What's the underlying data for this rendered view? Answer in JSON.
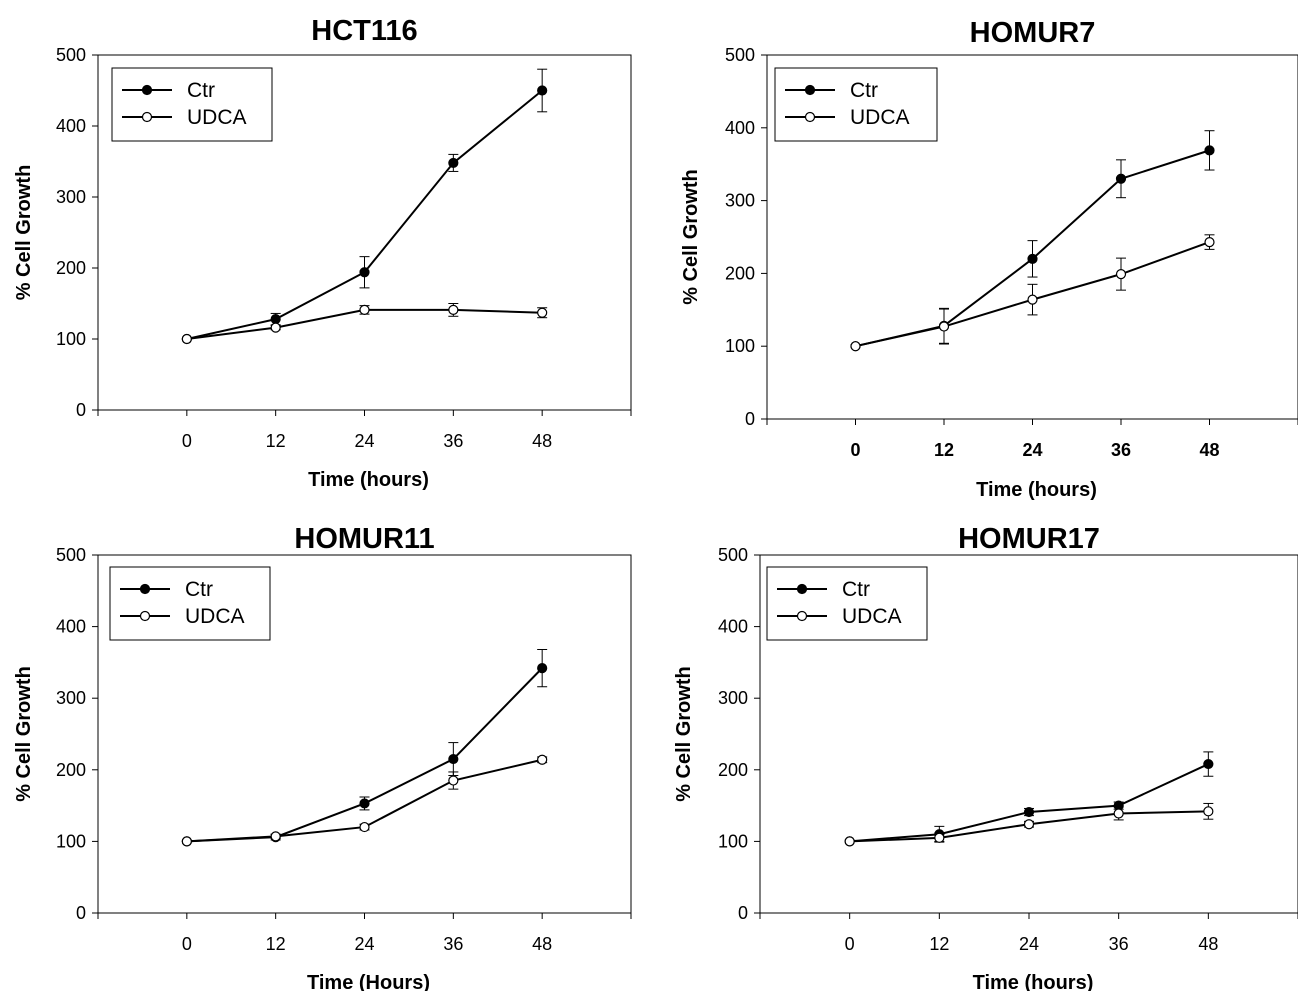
{
  "chart_data": [
    {
      "type": "line",
      "title": "HCT116",
      "xlabel": "Time (hours)",
      "ylabel": "% Cell Growth",
      "x": [
        0,
        12,
        24,
        36,
        48
      ],
      "xlim": [
        -12,
        60
      ],
      "ylim": [
        0,
        500
      ],
      "xticks": [
        "0",
        "12",
        "24",
        "36",
        "48"
      ],
      "yticks": [
        "0",
        "100",
        "200",
        "300",
        "400",
        "500"
      ],
      "bold_xticks": false,
      "legend": "top-left",
      "series": [
        {
          "name": "Ctr",
          "marker": "filled-circle",
          "values": [
            100,
            128,
            194,
            348,
            450
          ],
          "errors": [
            0,
            8,
            22,
            12,
            30
          ]
        },
        {
          "name": "UDCA",
          "marker": "open-circle",
          "values": [
            100,
            116,
            141,
            141,
            137
          ],
          "errors": [
            0,
            3,
            6,
            9,
            7
          ]
        }
      ]
    },
    {
      "type": "line",
      "title": "HOMUR7",
      "xlabel": "Time (hours)",
      "ylabel": "% Cell Growth",
      "x": [
        0,
        12,
        24,
        36,
        48
      ],
      "xlim": [
        -12,
        60
      ],
      "ylim": [
        0,
        500
      ],
      "xticks": [
        "0",
        "12",
        "24",
        "36",
        "48"
      ],
      "yticks": [
        "0",
        "100",
        "200",
        "300",
        "400",
        "500"
      ],
      "bold_xticks": true,
      "legend": "top-left",
      "series": [
        {
          "name": "Ctr",
          "marker": "filled-circle",
          "values": [
            100,
            128,
            220,
            330,
            369
          ],
          "errors": [
            0,
            24,
            25,
            26,
            27
          ]
        },
        {
          "name": "UDCA",
          "marker": "open-circle",
          "values": [
            100,
            127,
            164,
            199,
            243
          ],
          "errors": [
            0,
            24,
            21,
            22,
            10
          ]
        }
      ]
    },
    {
      "type": "line",
      "title": "HOMUR11",
      "xlabel": "Time (Hours)",
      "ylabel": "% Cell Growth",
      "x": [
        0,
        12,
        24,
        36,
        48
      ],
      "xlim": [
        -12,
        60
      ],
      "ylim": [
        0,
        500
      ],
      "xticks": [
        "0",
        "12",
        "24",
        "36",
        "48"
      ],
      "yticks": [
        "0",
        "100",
        "200",
        "300",
        "400",
        "500"
      ],
      "bold_xticks": false,
      "legend": "top-left",
      "series": [
        {
          "name": "Ctr",
          "marker": "filled-circle",
          "values": [
            100,
            106,
            153,
            215,
            342
          ],
          "errors": [
            0,
            4,
            9,
            23,
            26
          ]
        },
        {
          "name": "UDCA",
          "marker": "open-circle",
          "values": [
            100,
            107,
            120,
            185,
            214
          ],
          "errors": [
            0,
            3,
            4,
            12,
            4
          ]
        }
      ]
    },
    {
      "type": "line",
      "title": "HOMUR17",
      "xlabel": "Time (hours)",
      "ylabel": "% Cell Growth",
      "x": [
        0,
        12,
        24,
        36,
        48
      ],
      "xlim": [
        -12,
        60
      ],
      "ylim": [
        0,
        500
      ],
      "xticks": [
        "0",
        "12",
        "24",
        "36",
        "48"
      ],
      "yticks": [
        "0",
        "100",
        "200",
        "300",
        "400",
        "500"
      ],
      "bold_xticks": false,
      "legend": "top-left",
      "series": [
        {
          "name": "Ctr",
          "marker": "filled-circle",
          "values": [
            100,
            110,
            141,
            150,
            208
          ],
          "errors": [
            0,
            11,
            5,
            5,
            17
          ]
        },
        {
          "name": "UDCA",
          "marker": "open-circle",
          "values": [
            100,
            105,
            124,
            139,
            142
          ],
          "errors": [
            0,
            5,
            4,
            9,
            11
          ]
        }
      ]
    }
  ]
}
